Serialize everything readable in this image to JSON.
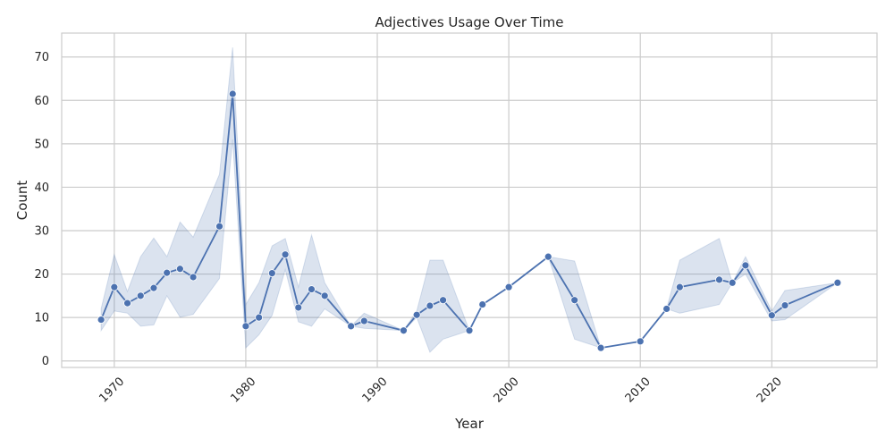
{
  "chart_data": {
    "type": "line",
    "title": "Adjectives Usage Over Time",
    "xlabel": "Year",
    "ylabel": "Count",
    "xlim": [
      1966,
      2028
    ],
    "ylim": [
      -1.5,
      75.5
    ],
    "xticks": [
      1970,
      1980,
      1990,
      2000,
      2010,
      2020
    ],
    "yticks": [
      0,
      10,
      20,
      30,
      40,
      50,
      60,
      70
    ],
    "grid": true,
    "colors": {
      "line": "#4c72b0",
      "band": "#4c72b0",
      "grid": "#cccccc",
      "axes": "#cccccc"
    },
    "series": [
      {
        "points": [
          {
            "x": 1969,
            "y": 9.5,
            "lo": 7,
            "hi": 12
          },
          {
            "x": 1970,
            "y": 17,
            "lo": 11.5,
            "hi": 24.5
          },
          {
            "x": 1971,
            "y": 13.3,
            "lo": 11,
            "hi": 16
          },
          {
            "x": 1972,
            "y": 15,
            "lo": 8,
            "hi": 24
          },
          {
            "x": 1973,
            "y": 16.8,
            "lo": 8.3,
            "hi": 28.3
          },
          {
            "x": 1974,
            "y": 20.3,
            "lo": 15,
            "hi": 24
          },
          {
            "x": 1975,
            "y": 21.2,
            "lo": 10.1,
            "hi": 32
          },
          {
            "x": 1976,
            "y": 19.3,
            "lo": 10.7,
            "hi": 28.5
          },
          {
            "x": 1978,
            "y": 31,
            "lo": 19,
            "hi": 43
          },
          {
            "x": 1979,
            "y": 61.5,
            "lo": 51,
            "hi": 72.2
          },
          {
            "x": 1980,
            "y": 8,
            "lo": 3,
            "hi": 13
          },
          {
            "x": 1981,
            "y": 10,
            "lo": 6,
            "hi": 18
          },
          {
            "x": 1982,
            "y": 20.2,
            "lo": 10.5,
            "hi": 26.5
          },
          {
            "x": 1983,
            "y": 24.5,
            "lo": 21,
            "hi": 28.2
          },
          {
            "x": 1984,
            "y": 12.3,
            "lo": 9,
            "hi": 17
          },
          {
            "x": 1985,
            "y": 16.5,
            "lo": 8,
            "hi": 29
          },
          {
            "x": 1986,
            "y": 15,
            "lo": 12,
            "hi": 18
          },
          {
            "x": 1988,
            "y": 8,
            "lo": 8,
            "hi": 8
          },
          {
            "x": 1989,
            "y": 9.2,
            "lo": 7.5,
            "hi": 11
          },
          {
            "x": 1992,
            "y": 7,
            "lo": 7,
            "hi": 7
          },
          {
            "x": 1993,
            "y": 10.6,
            "lo": 10,
            "hi": 11.5
          },
          {
            "x": 1994,
            "y": 12.7,
            "lo": 2,
            "hi": 23.2
          },
          {
            "x": 1995,
            "y": 14,
            "lo": 5,
            "hi": 23.2
          },
          {
            "x": 1997,
            "y": 7,
            "lo": 7,
            "hi": 7
          },
          {
            "x": 1998,
            "y": 13,
            "lo": 13,
            "hi": 13
          },
          {
            "x": 2000,
            "y": 17,
            "lo": 17,
            "hi": 17
          },
          {
            "x": 2003,
            "y": 24,
            "lo": 24,
            "hi": 24
          },
          {
            "x": 2005,
            "y": 14,
            "lo": 5,
            "hi": 23
          },
          {
            "x": 2007,
            "y": 3,
            "lo": 3,
            "hi": 3
          },
          {
            "x": 2010,
            "y": 4.5,
            "lo": 4.5,
            "hi": 4.5
          },
          {
            "x": 2012,
            "y": 12,
            "lo": 12,
            "hi": 12
          },
          {
            "x": 2013,
            "y": 17,
            "lo": 11,
            "hi": 23.2
          },
          {
            "x": 2016,
            "y": 18.7,
            "lo": 13,
            "hi": 28.2
          },
          {
            "x": 2017,
            "y": 18,
            "lo": 18,
            "hi": 18
          },
          {
            "x": 2018,
            "y": 22,
            "lo": 20,
            "hi": 24
          },
          {
            "x": 2020,
            "y": 10.5,
            "lo": 9.2,
            "hi": 11.5
          },
          {
            "x": 2021,
            "y": 12.8,
            "lo": 9.5,
            "hi": 16.2
          },
          {
            "x": 2025,
            "y": 18,
            "lo": 18,
            "hi": 18
          }
        ]
      }
    ]
  }
}
